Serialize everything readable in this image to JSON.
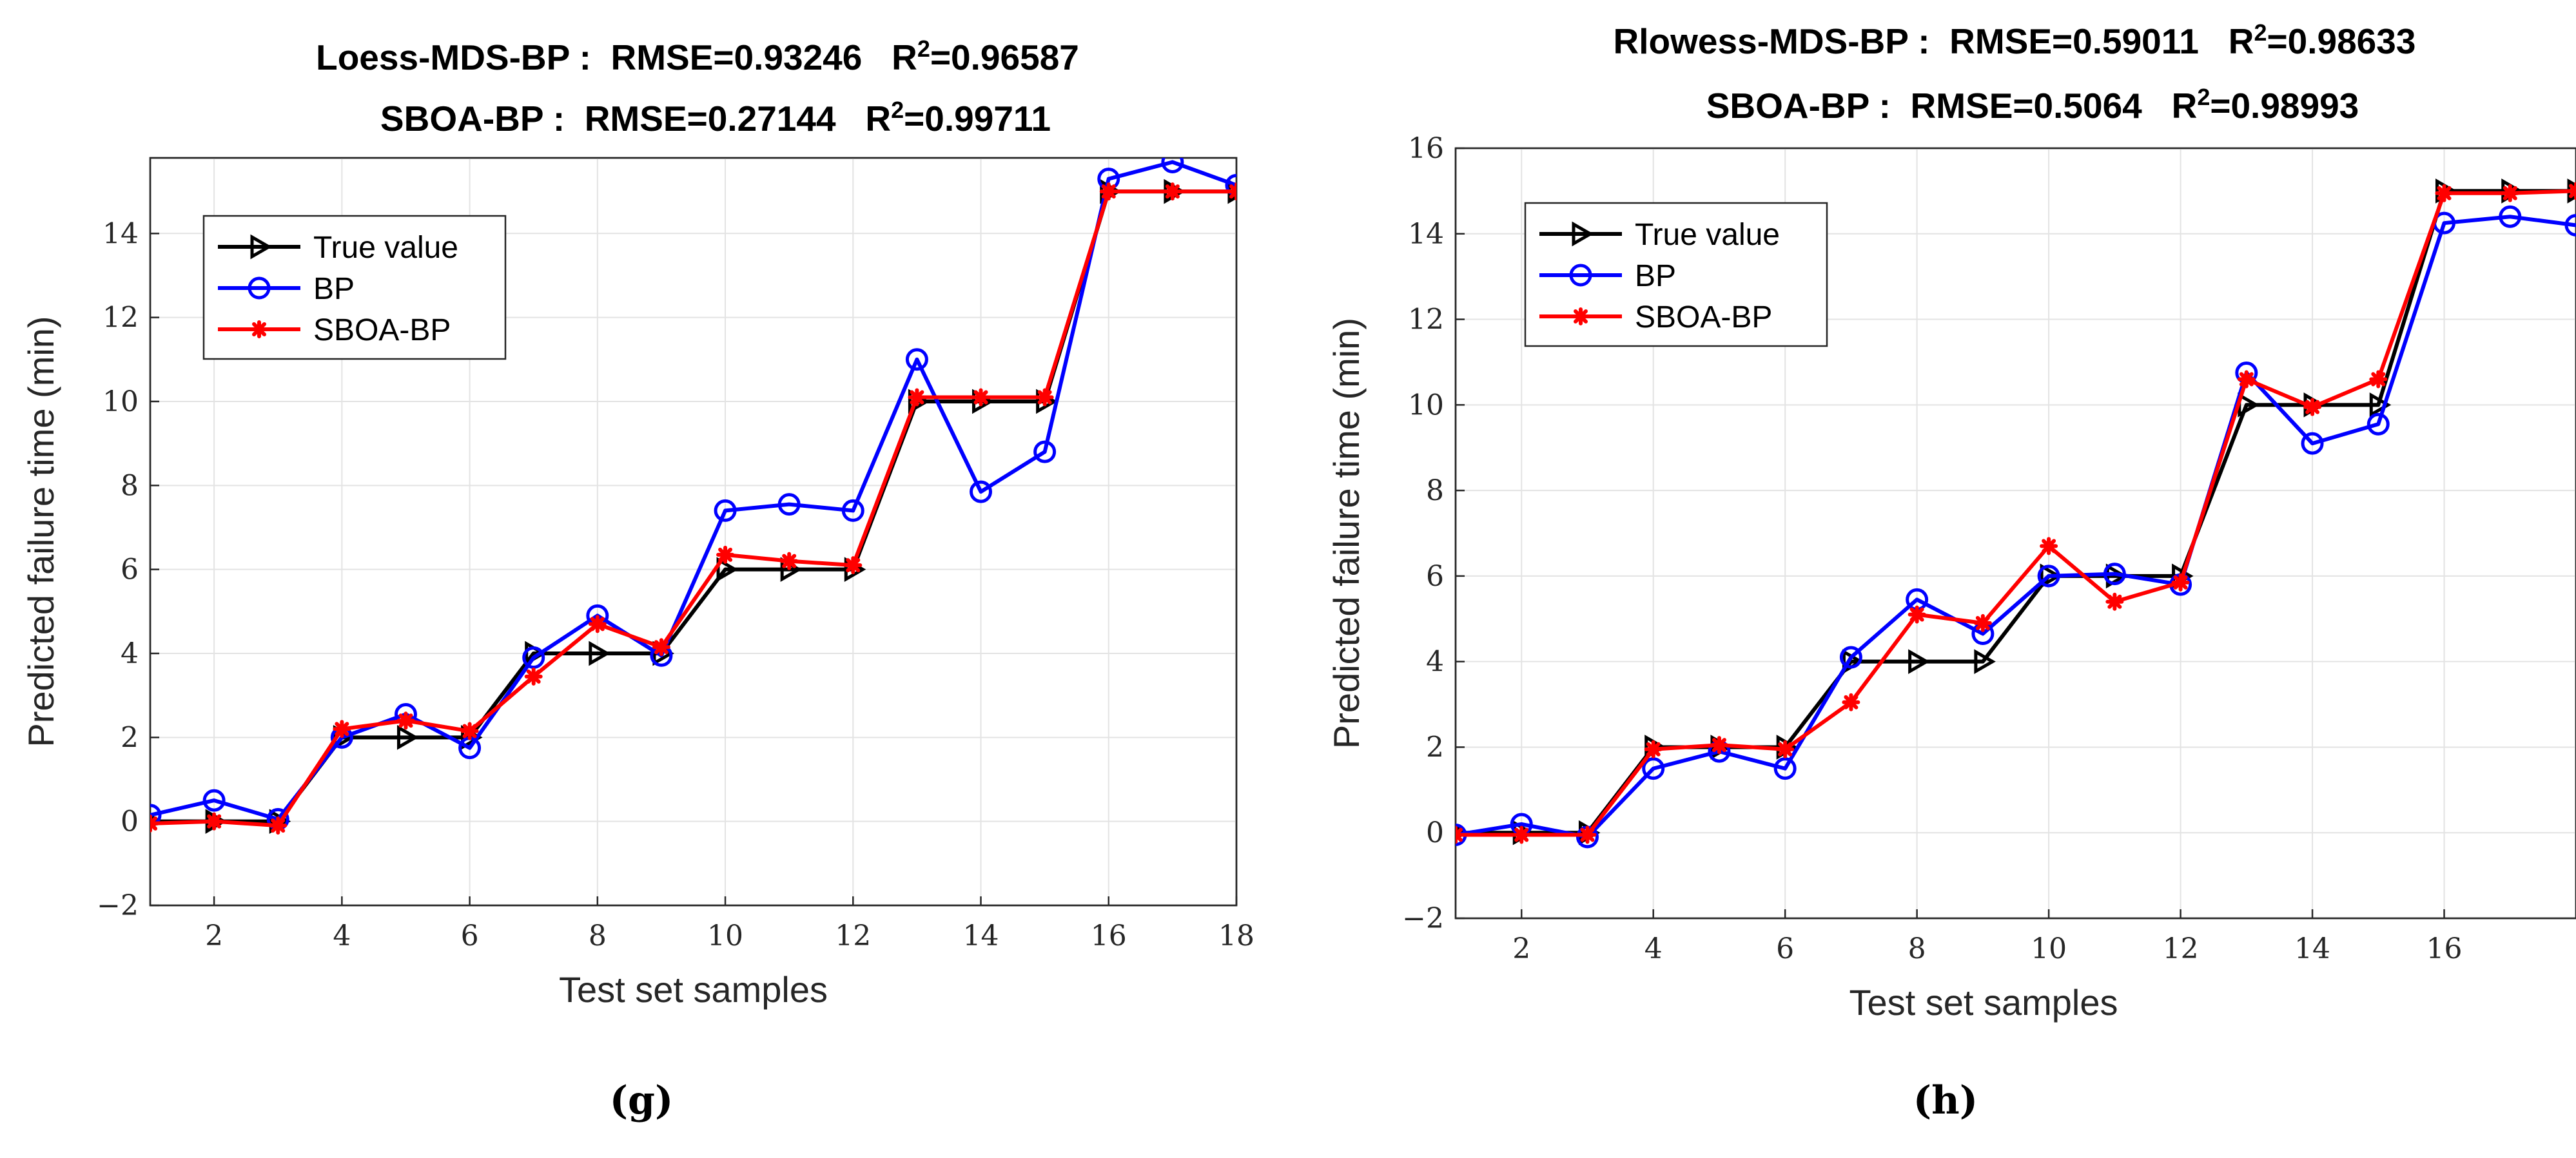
{
  "colors": {
    "true": "#000000",
    "bp": "#0000ff",
    "sboa": "#ff0000",
    "grid": "#e3e3e3",
    "axis": "#262626"
  },
  "chart_data": [
    {
      "id": "g",
      "type": "line",
      "caption": "(g)",
      "title_line1": {
        "method": "Loess-MDS-BP :",
        "rmse": "RMSE=0.93246",
        "r2_label": "R",
        "r2_sup": "2",
        "r2_value": "=0.96587"
      },
      "title_line2": {
        "method": "SBOA-BP :",
        "rmse": "RMSE=0.27144",
        "r2_label": "R",
        "r2_sup": "2",
        "r2_value": "=0.99711"
      },
      "xlabel": "Test set samples",
      "ylabel": "Predicted failure time (min)",
      "xlim": [
        1,
        18
      ],
      "ylim": [
        -2,
        15.8
      ],
      "xticks": [
        2,
        4,
        6,
        8,
        10,
        12,
        14,
        16,
        18
      ],
      "xtick_labels": [
        "2",
        "4",
        "6",
        "8",
        "10",
        "12",
        "14",
        "16",
        "18"
      ],
      "yticks": [
        -2,
        0,
        2,
        4,
        6,
        8,
        10,
        12,
        14
      ],
      "ytick_labels": [
        "−2",
        "0",
        "2",
        "4",
        "6",
        "8",
        "10",
        "12",
        "14"
      ],
      "legend": [
        "True value",
        "BP",
        "SBOA-BP"
      ],
      "x": [
        1,
        2,
        3,
        4,
        5,
        6,
        7,
        8,
        9,
        10,
        11,
        12,
        13,
        14,
        15,
        16,
        17,
        18
      ],
      "series": [
        {
          "name": "True value",
          "key": "true",
          "marker": "triangle-right",
          "values": [
            0,
            0,
            0,
            2,
            2,
            2,
            4,
            4,
            4,
            6,
            6,
            6,
            10,
            10,
            10,
            15,
            15,
            15
          ]
        },
        {
          "name": "BP",
          "key": "bp",
          "marker": "circle",
          "values": [
            0.15,
            0.5,
            0.05,
            2.0,
            2.55,
            1.75,
            3.9,
            4.9,
            3.95,
            7.4,
            7.55,
            7.4,
            11.0,
            7.85,
            8.8,
            15.3,
            15.7,
            15.15
          ]
        },
        {
          "name": "SBOA-BP",
          "key": "sboa",
          "marker": "asterisk",
          "values": [
            -0.05,
            0.0,
            -0.1,
            2.2,
            2.4,
            2.15,
            3.45,
            4.7,
            4.15,
            6.35,
            6.2,
            6.1,
            10.1,
            10.1,
            10.1,
            15.0,
            15.0,
            15.0
          ]
        }
      ]
    },
    {
      "id": "h",
      "type": "line",
      "caption": "(h)",
      "title_line1": {
        "method": "Rlowess-MDS-BP :",
        "rmse": "RMSE=0.59011",
        "r2_label": "R",
        "r2_sup": "2",
        "r2_value": "=0.98633"
      },
      "title_line2": {
        "method": "SBOA-BP :",
        "rmse": "RMSE=0.5064",
        "r2_label": "R",
        "r2_sup": "2",
        "r2_value": "=0.98993"
      },
      "xlabel": "Test set samples",
      "ylabel": "Predicted failure time (min)",
      "xlim": [
        1,
        18
      ],
      "ylim": [
        -2,
        16
      ],
      "xticks": [
        2,
        4,
        6,
        8,
        10,
        12,
        14,
        16
      ],
      "xtick_labels": [
        "2",
        "4",
        "6",
        "8",
        "10",
        "12",
        "14",
        "16"
      ],
      "yticks": [
        -2,
        0,
        2,
        4,
        6,
        8,
        10,
        12,
        14,
        16
      ],
      "ytick_labels": [
        "−2",
        "0",
        "2",
        "4",
        "6",
        "8",
        "10",
        "12",
        "14",
        "16"
      ],
      "legend": [
        "True value",
        "BP",
        "SBOA-BP"
      ],
      "x": [
        1,
        2,
        3,
        4,
        5,
        6,
        7,
        8,
        9,
        10,
        11,
        12,
        13,
        14,
        15,
        16,
        17,
        18
      ],
      "series": [
        {
          "name": "True value",
          "key": "true",
          "marker": "triangle-right",
          "values": [
            0,
            0,
            0,
            2,
            2,
            2,
            4,
            4,
            4,
            6,
            6,
            6,
            10,
            10,
            10,
            15,
            15,
            15
          ]
        },
        {
          "name": "BP",
          "key": "bp",
          "marker": "circle",
          "values": [
            -0.05,
            0.2,
            -0.1,
            1.5,
            1.9,
            1.5,
            4.1,
            5.45,
            4.65,
            6.0,
            6.05,
            5.8,
            10.75,
            9.1,
            9.55,
            14.25,
            14.4,
            14.2
          ]
        },
        {
          "name": "SBOA-BP",
          "key": "sboa",
          "marker": "asterisk",
          "values": [
            -0.05,
            -0.05,
            -0.05,
            1.95,
            2.05,
            1.95,
            3.05,
            5.1,
            4.9,
            6.7,
            5.4,
            5.85,
            10.6,
            9.95,
            10.6,
            14.95,
            14.95,
            15.0
          ]
        }
      ]
    }
  ]
}
